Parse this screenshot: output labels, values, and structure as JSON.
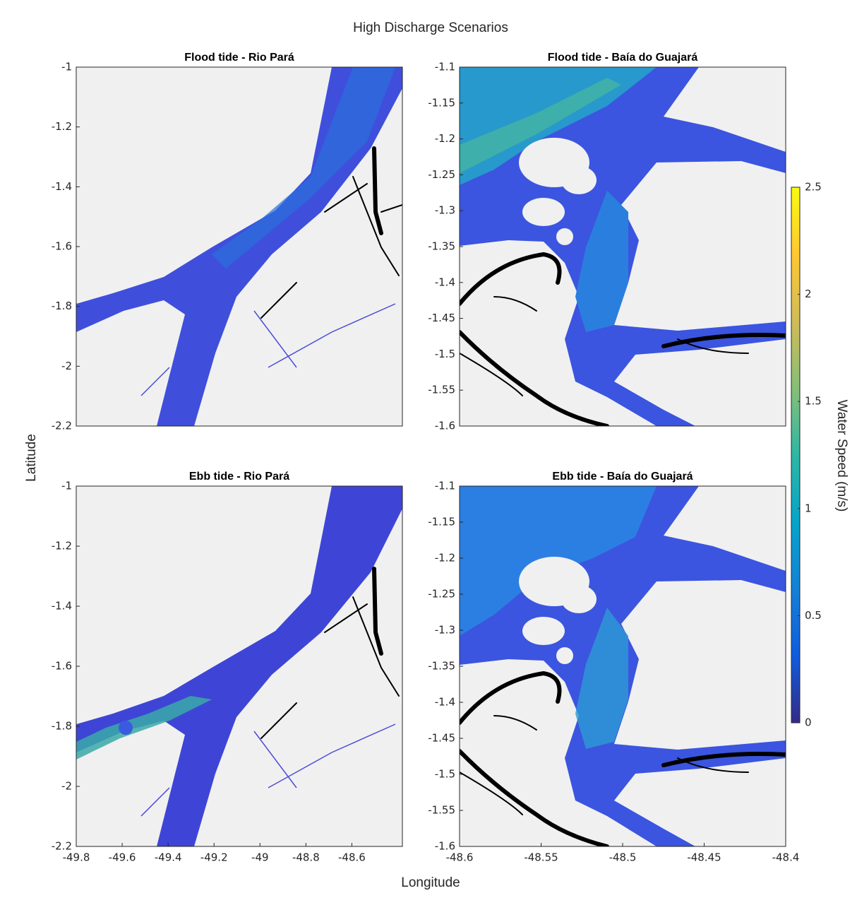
{
  "title": "High Discharge Scenarios",
  "x_label": "Longitude",
  "y_label": "Latitude",
  "colorbar": {
    "label": "Water Speed (m/s)",
    "lim": [
      0,
      2.5
    ],
    "ticks": [
      0,
      0.5,
      1,
      1.5,
      2,
      2.5
    ],
    "colormap": "parula"
  },
  "chart_data": [
    {
      "type": "map",
      "title": "Flood tide - Rio Pará",
      "xlim": [
        -49.8,
        -48.38
      ],
      "ylim": [
        -2.2,
        -1
      ],
      "yticks": [
        -1,
        -1.2,
        -1.4,
        -1.6,
        -1.8,
        -2,
        -2.2
      ]
    },
    {
      "type": "map",
      "title": "Flood tide - Baía do Guajará",
      "xlim": [
        -48.6,
        -48.4
      ],
      "ylim": [
        -1.6,
        -1.1
      ],
      "yticks": [
        -1.1,
        -1.15,
        -1.2,
        -1.25,
        -1.3,
        -1.35,
        -1.4,
        -1.45,
        -1.5,
        -1.55,
        -1.6
      ]
    },
    {
      "type": "map",
      "title": "Ebb tide - Rio Pará",
      "xlim": [
        -49.8,
        -48.38
      ],
      "ylim": [
        -2.2,
        -1
      ],
      "xticks": [
        -49.8,
        -49.6,
        -49.4,
        -49.2,
        -49,
        -48.8,
        -48.6
      ],
      "yticks": [
        -1,
        -1.2,
        -1.4,
        -1.6,
        -1.8,
        -2,
        -2.2
      ]
    },
    {
      "type": "map",
      "title": "Ebb tide - Baía do Guajará",
      "xlim": [
        -48.6,
        -48.4
      ],
      "ylim": [
        -1.6,
        -1.1
      ],
      "xticks": [
        -48.6,
        -48.55,
        -48.5,
        -48.45,
        -48.4
      ],
      "yticks": [
        -1.1,
        -1.15,
        -1.2,
        -1.25,
        -1.3,
        -1.35,
        -1.4,
        -1.45,
        -1.5,
        -1.55,
        -1.6
      ]
    }
  ]
}
